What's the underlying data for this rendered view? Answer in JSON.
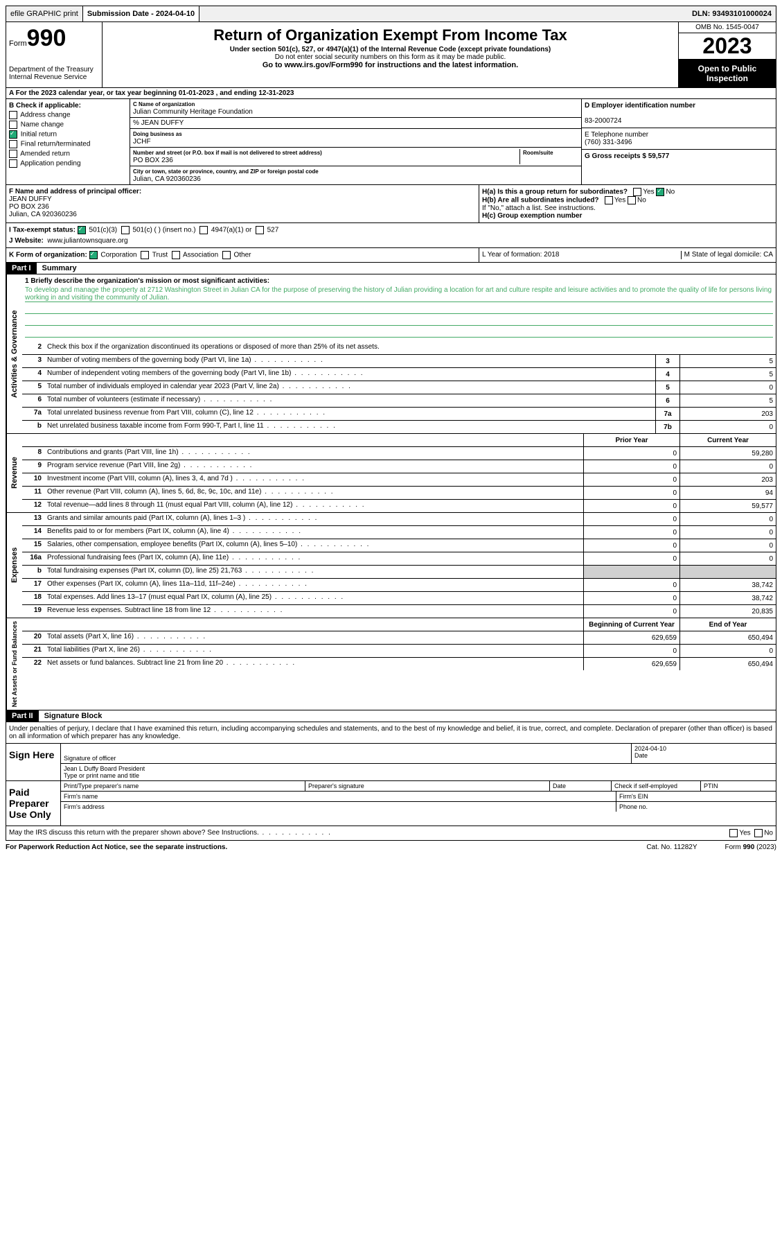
{
  "topbar": {
    "efile": "efile GRAPHIC print",
    "submission": "Submission Date - 2024-04-10",
    "dln": "DLN: 93493101000024"
  },
  "header": {
    "form_label": "Form",
    "form_num": "990",
    "title": "Return of Organization Exempt From Income Tax",
    "subtitle": "Under section 501(c), 527, or 4947(a)(1) of the Internal Revenue Code (except private foundations)",
    "warning": "Do not enter social security numbers on this form as it may be made public.",
    "goto": "Go to www.irs.gov/Form990 for instructions and the latest information.",
    "dept": "Department of the Treasury",
    "irs": "Internal Revenue Service",
    "omb": "OMB No. 1545-0047",
    "year": "2023",
    "open": "Open to Public Inspection"
  },
  "section_a": "A For the 2023 calendar year, or tax year beginning 01-01-2023   , and ending 12-31-2023",
  "section_b": {
    "label": "B Check if applicable:",
    "items": [
      "Address change",
      "Name change",
      "Initial return",
      "Final return/terminated",
      "Amended return",
      "Application pending"
    ],
    "checked_idx": 2
  },
  "section_c": {
    "name_label": "C Name of organization",
    "name": "Julian Community Heritage Foundation",
    "care_of": "% JEAN DUFFY",
    "dba_label": "Doing business as",
    "dba": "JCHF",
    "addr_label": "Number and street (or P.O. box if mail is not delivered to street address)",
    "room_label": "Room/suite",
    "addr": "PO BOX 236",
    "city_label": "City or town, state or province, country, and ZIP or foreign postal code",
    "city": "Julian, CA  920360236"
  },
  "section_d": {
    "ein_label": "D Employer identification number",
    "ein": "83-2000724",
    "phone_label": "E Telephone number",
    "phone": "(760) 331-3496",
    "gross_label": "G Gross receipts $ 59,577"
  },
  "section_f": {
    "label": "F Name and address of principal officer:",
    "name": "JEAN DUFFY",
    "addr1": "PO BOX 236",
    "addr2": "Julian, CA  920360236"
  },
  "section_h": {
    "ha": "H(a)  Is this a group return for subordinates?",
    "hb": "H(b)  Are all subordinates included?",
    "hb_note": "If \"No,\" attach a list. See instructions.",
    "hc": "H(c)  Group exemption number"
  },
  "section_i": {
    "label": "I   Tax-exempt status:",
    "opts": [
      "501(c)(3)",
      "501(c) (  ) (insert no.)",
      "4947(a)(1) or",
      "527"
    ]
  },
  "section_j": {
    "label": "J   Website:",
    "value": "www.juliantownsquare.org"
  },
  "section_k": {
    "label": "K Form of organization:",
    "opts": [
      "Corporation",
      "Trust",
      "Association",
      "Other"
    ]
  },
  "section_l": "L Year of formation: 2018",
  "section_m": "M State of legal domicile: CA",
  "part1": {
    "header": "Part I",
    "title": "Summary",
    "mission_label": "1   Briefly describe the organization's mission or most significant activities:",
    "mission": "To develop and manage the property at 2712 Washington Street in Julian CA for the purpose of preserving the history of Julian providing a location for art and culture respite and leisure activities and to promote the quality of life for persons living working in and visiting the community of Julian.",
    "line2": "Check this box      if the organization discontinued its operations or disposed of more than 25% of its net assets.",
    "gov_lines": [
      {
        "n": "3",
        "t": "Number of voting members of the governing body (Part VI, line 1a)",
        "b": "3",
        "v": "5"
      },
      {
        "n": "4",
        "t": "Number of independent voting members of the governing body (Part VI, line 1b)",
        "b": "4",
        "v": "5"
      },
      {
        "n": "5",
        "t": "Total number of individuals employed in calendar year 2023 (Part V, line 2a)",
        "b": "5",
        "v": "0"
      },
      {
        "n": "6",
        "t": "Total number of volunteers (estimate if necessary)",
        "b": "6",
        "v": "5"
      },
      {
        "n": "7a",
        "t": "Total unrelated business revenue from Part VIII, column (C), line 12",
        "b": "7a",
        "v": "203"
      },
      {
        "n": "b",
        "t": "Net unrelated business taxable income from Form 990-T, Part I, line 11",
        "b": "7b",
        "v": "0"
      }
    ],
    "col_headers": {
      "prior": "Prior Year",
      "current": "Current Year",
      "begin": "Beginning of Current Year",
      "end": "End of Year"
    },
    "rev_lines": [
      {
        "n": "8",
        "t": "Contributions and grants (Part VIII, line 1h)",
        "p": "0",
        "c": "59,280"
      },
      {
        "n": "9",
        "t": "Program service revenue (Part VIII, line 2g)",
        "p": "0",
        "c": "0"
      },
      {
        "n": "10",
        "t": "Investment income (Part VIII, column (A), lines 3, 4, and 7d )",
        "p": "0",
        "c": "203"
      },
      {
        "n": "11",
        "t": "Other revenue (Part VIII, column (A), lines 5, 6d, 8c, 9c, 10c, and 11e)",
        "p": "0",
        "c": "94"
      },
      {
        "n": "12",
        "t": "Total revenue—add lines 8 through 11 (must equal Part VIII, column (A), line 12)",
        "p": "0",
        "c": "59,577"
      }
    ],
    "exp_lines": [
      {
        "n": "13",
        "t": "Grants and similar amounts paid (Part IX, column (A), lines 1–3 )",
        "p": "0",
        "c": "0"
      },
      {
        "n": "14",
        "t": "Benefits paid to or for members (Part IX, column (A), line 4)",
        "p": "0",
        "c": "0"
      },
      {
        "n": "15",
        "t": "Salaries, other compensation, employee benefits (Part IX, column (A), lines 5–10)",
        "p": "0",
        "c": "0"
      },
      {
        "n": "16a",
        "t": "Professional fundraising fees (Part IX, column (A), line 11e)",
        "p": "0",
        "c": "0"
      },
      {
        "n": "b",
        "t": "Total fundraising expenses (Part IX, column (D), line 25) 21,763",
        "p": "",
        "c": "",
        "shaded": true
      },
      {
        "n": "17",
        "t": "Other expenses (Part IX, column (A), lines 11a–11d, 11f–24e)",
        "p": "0",
        "c": "38,742"
      },
      {
        "n": "18",
        "t": "Total expenses. Add lines 13–17 (must equal Part IX, column (A), line 25)",
        "p": "0",
        "c": "38,742"
      },
      {
        "n": "19",
        "t": "Revenue less expenses. Subtract line 18 from line 12",
        "p": "0",
        "c": "20,835"
      }
    ],
    "net_lines": [
      {
        "n": "20",
        "t": "Total assets (Part X, line 16)",
        "p": "629,659",
        "c": "650,494"
      },
      {
        "n": "21",
        "t": "Total liabilities (Part X, line 26)",
        "p": "0",
        "c": "0"
      },
      {
        "n": "22",
        "t": "Net assets or fund balances. Subtract line 21 from line 20",
        "p": "629,659",
        "c": "650,494"
      }
    ]
  },
  "part2": {
    "header": "Part II",
    "title": "Signature Block",
    "perjury": "Under penalties of perjury, I declare that I have examined this return, including accompanying schedules and statements, and to the best of my knowledge and belief, it is true, correct, and complete. Declaration of preparer (other than officer) is based on all information of which preparer has any knowledge.",
    "sign_here": "Sign Here",
    "sig_officer": "Signature of officer",
    "sig_date": "2024-04-10",
    "date_label": "Date",
    "officer_name": "Jean L Duffy Board President",
    "type_label": "Type or print name and title",
    "paid": "Paid Preparer Use Only",
    "prep_name": "Print/Type preparer's name",
    "prep_sig": "Preparer's signature",
    "check": "Check       if self-employed",
    "ptin": "PTIN",
    "firm_name": "Firm's name",
    "firm_ein": "Firm's EIN",
    "firm_addr": "Firm's address",
    "phone": "Phone no.",
    "discuss": "May the IRS discuss this return with the preparer shown above? See Instructions."
  },
  "footer": {
    "paperwork": "For Paperwork Reduction Act Notice, see the separate instructions.",
    "cat": "Cat. No. 11282Y",
    "form": "Form 990 (2023)"
  }
}
